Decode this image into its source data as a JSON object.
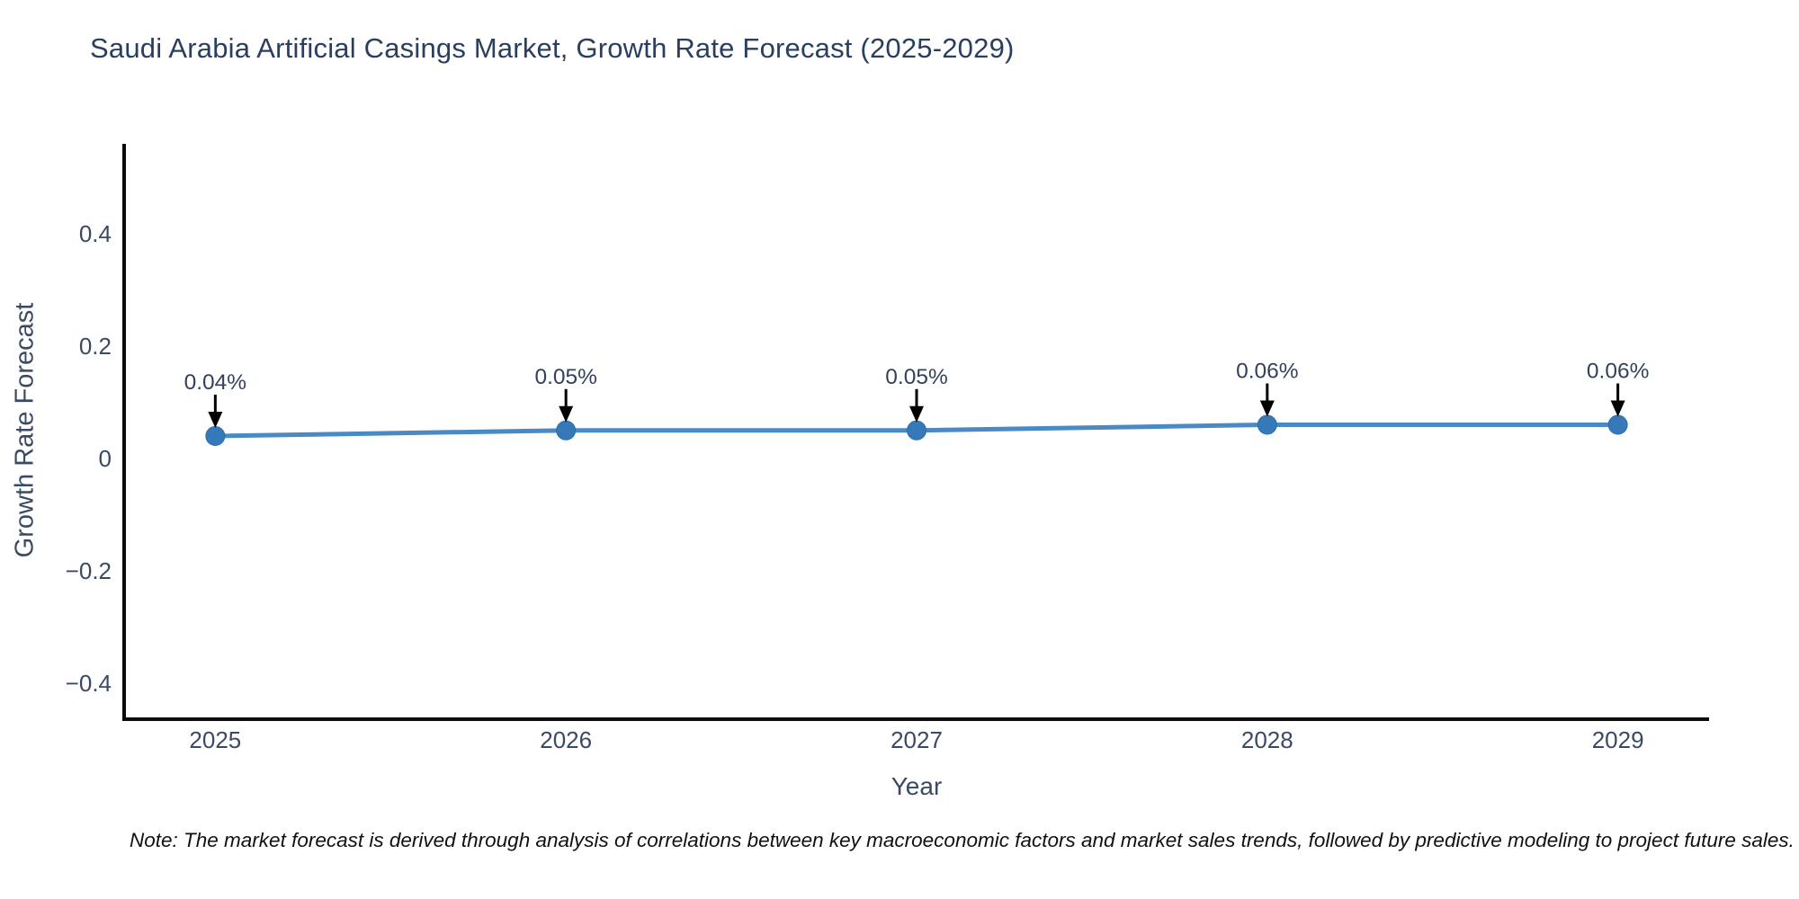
{
  "page": {
    "background": "#ffffff"
  },
  "chart_data": {
    "type": "line",
    "title": "Saudi Arabia Artificial Casings Market, Growth Rate Forecast (2025-2029)",
    "xlabel": "Year",
    "ylabel": "Growth Rate Forecast",
    "x": [
      2025,
      2026,
      2027,
      2028,
      2029
    ],
    "values": [
      0.04,
      0.05,
      0.05,
      0.06,
      0.06
    ],
    "point_labels": [
      "0.04%",
      "0.05%",
      "0.05%",
      "0.06%",
      "0.06%"
    ],
    "xticks": [
      {
        "value": 2025,
        "label": "2025"
      },
      {
        "value": 2026,
        "label": "2026"
      },
      {
        "value": 2027,
        "label": "2027"
      },
      {
        "value": 2028,
        "label": "2028"
      },
      {
        "value": 2029,
        "label": "2029"
      }
    ],
    "yticks": [
      {
        "value": 0.4,
        "label": "0.4"
      },
      {
        "value": 0.2,
        "label": "0.2"
      },
      {
        "value": 0,
        "label": "0"
      },
      {
        "value": -0.2,
        "label": "−0.2"
      },
      {
        "value": -0.4,
        "label": "−0.4"
      }
    ],
    "xlim": [
      2024.74,
      2029.26
    ],
    "ylim": [
      -0.464,
      0.56
    ],
    "grid": false,
    "legend": false,
    "annotation_style": "value-label-with-down-arrow",
    "colors": {
      "line": "#4a8ac4",
      "marker": "#3579b8",
      "marker_edge": "#2e6da8",
      "arrow": "#000000",
      "axis": "#0b0b0f",
      "title_text": "#2a3f5f",
      "tick_text": "#3b4a63",
      "annotation_text": "#33415c"
    }
  },
  "note": {
    "text": "Note: The market forecast is derived through analysis of correlations between key macroeconomic factors and market sales trends, followed by predictive modeling to project future sales."
  }
}
